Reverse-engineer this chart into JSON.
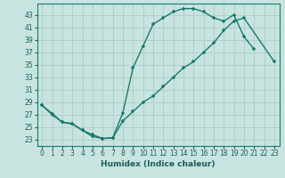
{
  "xlabel": "Humidex (Indice chaleur)",
  "bg_color": "#c8e4e0",
  "grid_color": "#aed0ca",
  "line_color": "#1a7a6e",
  "xlim": [
    -0.5,
    23.5
  ],
  "ylim": [
    22.0,
    44.8
  ],
  "xticks": [
    0,
    1,
    2,
    3,
    4,
    5,
    6,
    7,
    8,
    9,
    10,
    11,
    12,
    13,
    14,
    15,
    16,
    17,
    18,
    19,
    20,
    21,
    22,
    23
  ],
  "yticks": [
    23,
    25,
    27,
    29,
    31,
    33,
    35,
    37,
    39,
    41,
    43
  ],
  "curve1_x": [
    0,
    1,
    2,
    3,
    4,
    5,
    6,
    7,
    8,
    9,
    10,
    11,
    12,
    13,
    14,
    15,
    16,
    17,
    18,
    19,
    20,
    21
  ],
  "curve1_y": [
    28.5,
    27.2,
    25.8,
    25.5,
    24.5,
    23.5,
    23.2,
    23.3,
    27.3,
    34.5,
    38.0,
    41.5,
    42.5,
    43.5,
    44.0,
    44.0,
    43.5,
    42.5,
    42.0,
    43.0,
    39.5,
    37.5
  ],
  "curve2_x": [
    0,
    1,
    2,
    3,
    4,
    5,
    6,
    7,
    8,
    9,
    10,
    11,
    12,
    13,
    14,
    15,
    16,
    17,
    18,
    19,
    20,
    23
  ],
  "curve2_y": [
    28.5,
    27.0,
    25.8,
    25.6,
    24.5,
    23.8,
    23.2,
    23.3,
    26.0,
    27.5,
    29.0,
    30.0,
    31.5,
    33.0,
    34.5,
    35.5,
    37.0,
    38.5,
    40.5,
    42.0,
    42.5,
    35.5
  ]
}
